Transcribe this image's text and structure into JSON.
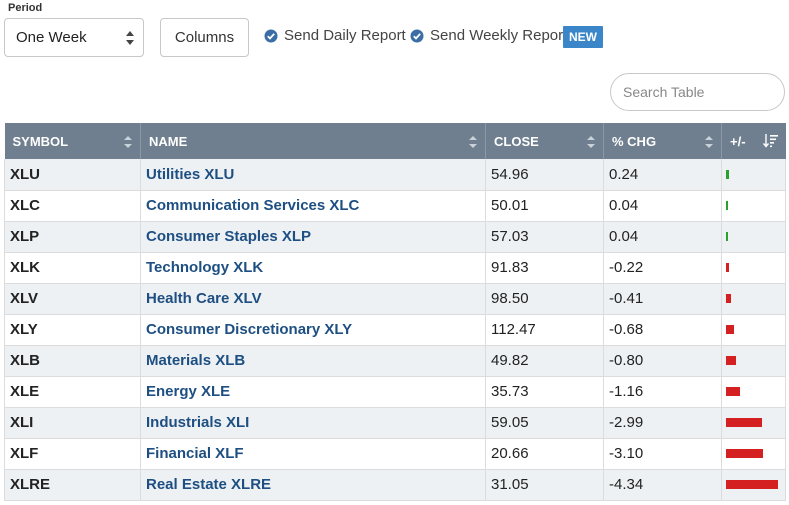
{
  "period": {
    "label": "Period",
    "value": "One Week"
  },
  "toolbar": {
    "columns_label": "Columns"
  },
  "reports": {
    "daily_label": "Send Daily Report",
    "weekly_label": "Send Weekly Report",
    "new_badge": "NEW"
  },
  "search": {
    "placeholder": "Search Table"
  },
  "table": {
    "headers": [
      "SYMBOL",
      "NAME",
      "CLOSE",
      "% CHG",
      "+/-"
    ],
    "rows": [
      {
        "symbol": "XLU",
        "name": "Utilities XLU",
        "close": "54.96",
        "chg": "0.24"
      },
      {
        "symbol": "XLC",
        "name": "Communication Services XLC",
        "close": "50.01",
        "chg": "0.04"
      },
      {
        "symbol": "XLP",
        "name": "Consumer Staples XLP",
        "close": "57.03",
        "chg": "0.04"
      },
      {
        "symbol": "XLK",
        "name": "Technology XLK",
        "close": "91.83",
        "chg": "-0.22"
      },
      {
        "symbol": "XLV",
        "name": "Health Care XLV",
        "close": "98.50",
        "chg": "-0.41"
      },
      {
        "symbol": "XLY",
        "name": "Consumer Discretionary XLY",
        "close": "112.47",
        "chg": "-0.68"
      },
      {
        "symbol": "XLB",
        "name": "Materials XLB",
        "close": "49.82",
        "chg": "-0.80"
      },
      {
        "symbol": "XLE",
        "name": "Energy XLE",
        "close": "35.73",
        "chg": "-1.16"
      },
      {
        "symbol": "XLI",
        "name": "Industrials XLI",
        "close": "59.05",
        "chg": "-2.99"
      },
      {
        "symbol": "XLF",
        "name": "Financial XLF",
        "close": "20.66",
        "chg": "-3.10"
      },
      {
        "symbol": "XLRE",
        "name": "Real Estate XLRE",
        "close": "31.05",
        "chg": "-4.34"
      }
    ]
  },
  "colors": {
    "header_bg": "#6f7f8f",
    "link": "#1e4f82",
    "positive": "#2aa12a",
    "negative": "#d42020",
    "badge": "#3a86c8"
  }
}
